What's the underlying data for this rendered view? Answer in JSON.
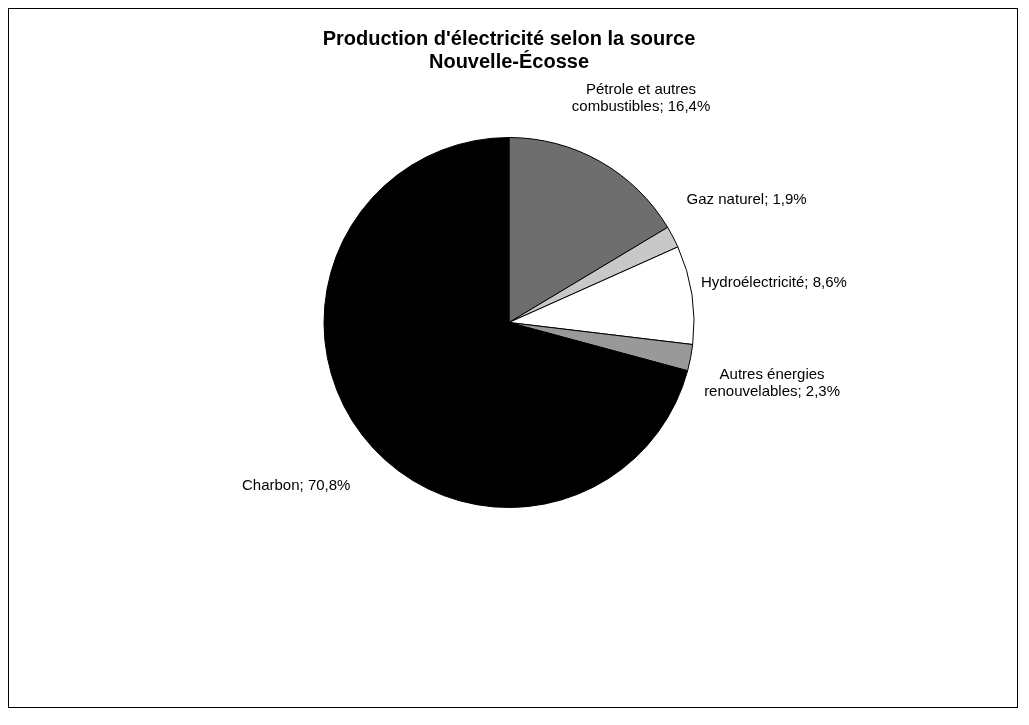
{
  "chart_data": {
    "type": "pie",
    "title": "Production d'électricité selon la source",
    "subtitle": "Nouvelle-Écosse",
    "categories": [
      "Pétrole et autres combustibles",
      "Gaz naturel",
      "Hydroélectricité",
      "Autres énergies renouvelables",
      "Charbon"
    ],
    "values": [
      16.4,
      1.9,
      8.6,
      2.3,
      70.8
    ],
    "value_labels": [
      "16,4%",
      "1,9%",
      "8,6%",
      "2,3%",
      "70,8%"
    ],
    "colors": [
      "#6e6e6e",
      "#c8c8c8",
      "#ffffff",
      "#999999",
      "#000000"
    ],
    "legend": false
  }
}
